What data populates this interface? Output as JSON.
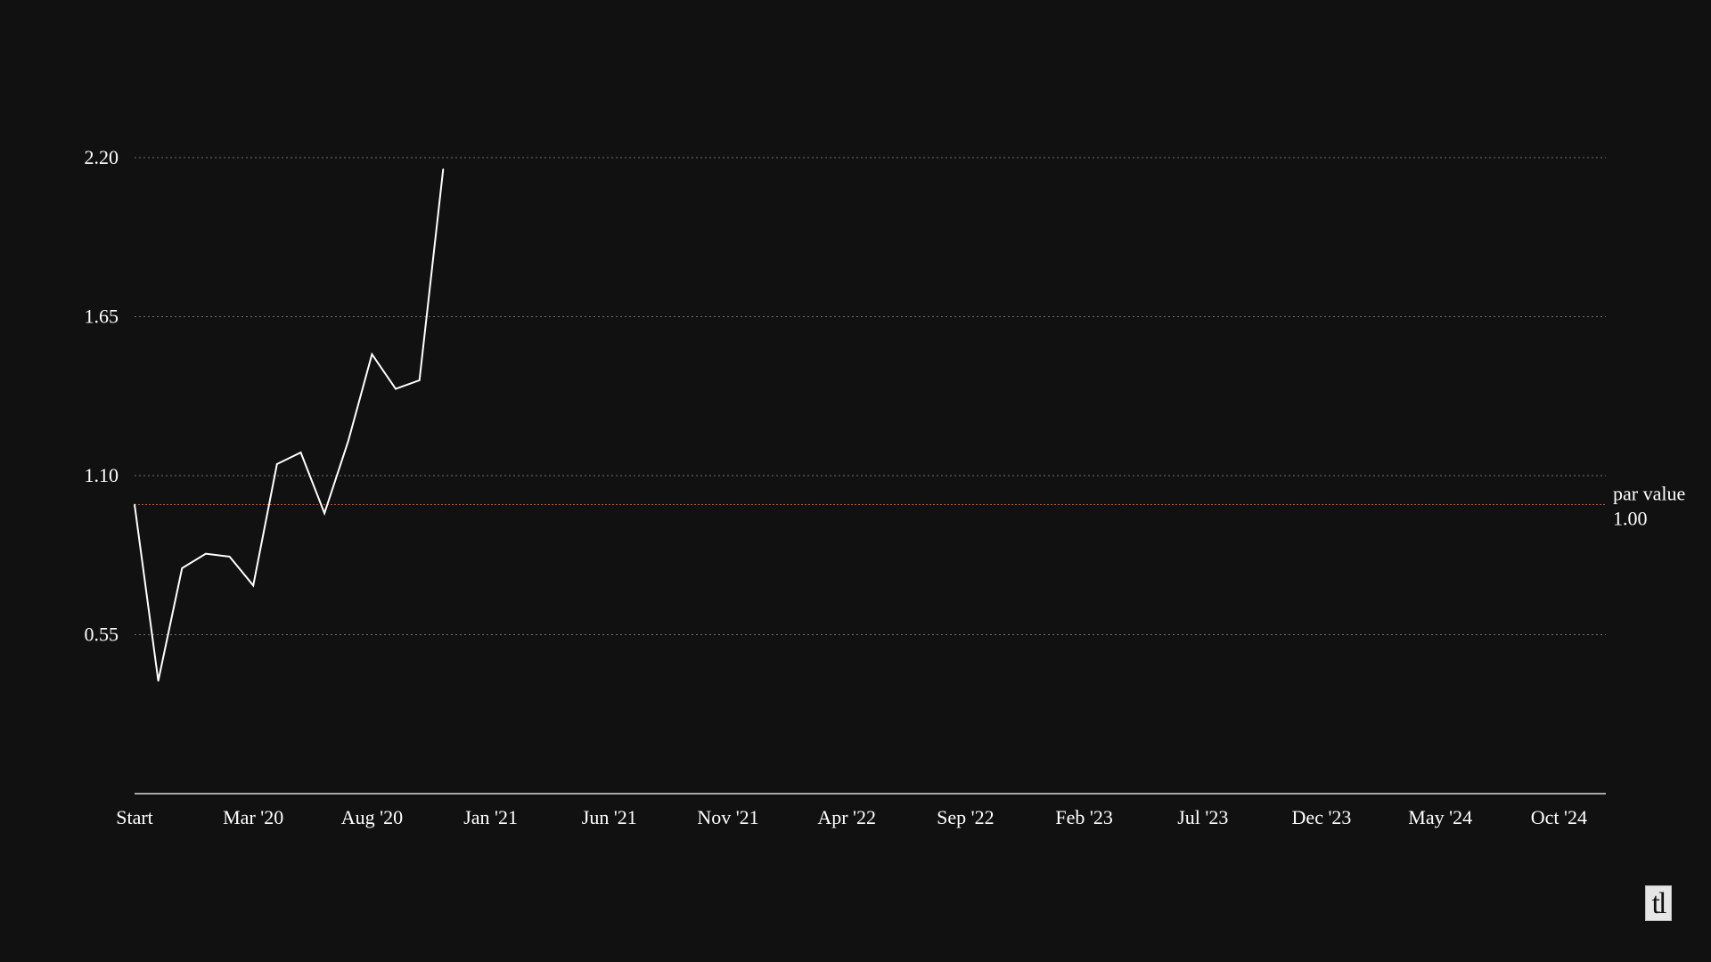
{
  "chart_data": {
    "type": "line",
    "title": "",
    "xlabel": "",
    "ylabel": "",
    "x_tick_labels": [
      "Start",
      "Mar '20",
      "Aug '20",
      "Jan '21",
      "Jun '21",
      "Nov '21",
      "Apr '22",
      "Sep '22",
      "Feb '23",
      "Jul '23",
      "Dec '23",
      "May '24",
      "Oct '24"
    ],
    "y_ticks": [
      "0.55",
      "1.10",
      "1.65",
      "2.20"
    ],
    "ylim": [
      0.0,
      2.2
    ],
    "grid": true,
    "series": [
      {
        "color": "#ffffff",
        "x_month_index": [
          0,
          1,
          2,
          3,
          4,
          5,
          6,
          7,
          8,
          9,
          10,
          11,
          12,
          13
        ],
        "values": [
          1.0,
          0.39,
          0.78,
          0.83,
          0.82,
          0.72,
          1.14,
          1.18,
          0.97,
          1.22,
          1.52,
          1.4,
          1.43,
          2.16
        ]
      }
    ],
    "reference_line": {
      "value": 1.0,
      "label": "par value",
      "value_label": "1.00",
      "color": "#b0623a"
    }
  },
  "logo": {
    "text": "tl"
  }
}
